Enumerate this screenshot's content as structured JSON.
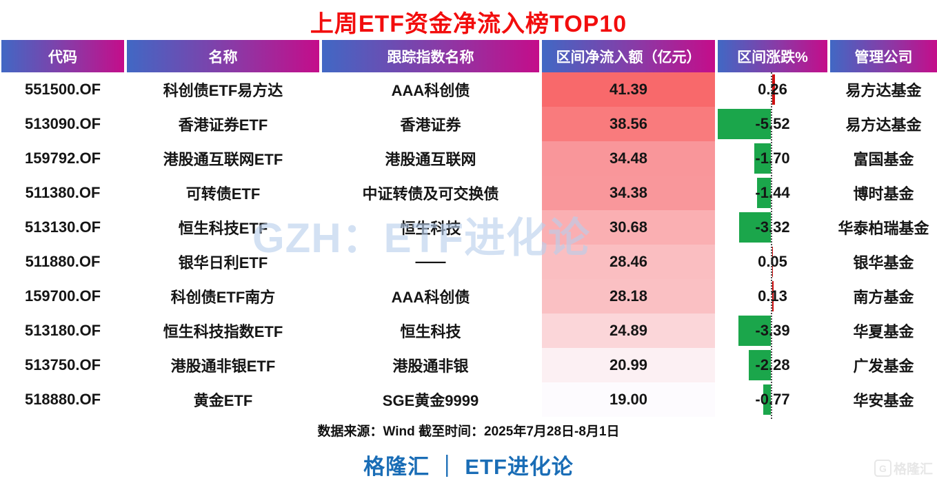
{
  "title": "上周ETF资金净流入榜TOP10",
  "watermark": {
    "text": "GZH：ETF进化论"
  },
  "table": {
    "columns": [
      {
        "label": "代码"
      },
      {
        "label": "名称"
      },
      {
        "label": "跟踪指数名称"
      },
      {
        "label": "区间净流入额（亿元）"
      },
      {
        "label": "区间涨跌%"
      },
      {
        "label": "管理公司"
      }
    ],
    "rows": [
      {
        "code": "551500.OF",
        "name": "科创债ETF易方达",
        "index": "AAA科创债",
        "inflow": "41.39",
        "change": "0.26",
        "change_value": 0.26,
        "company": "易方达基金",
        "inflow_color": "#f8696b"
      },
      {
        "code": "513090.OF",
        "name": "香港证券ETF",
        "index": "香港证券",
        "inflow": "38.56",
        "change": "-5.52",
        "change_value": -5.52,
        "company": "易方达基金",
        "inflow_color": "#f97b7d"
      },
      {
        "code": "159792.OF",
        "name": "港股通互联网ETF",
        "index": "港股通互联网",
        "inflow": "34.48",
        "change": "-1.70",
        "change_value": -1.7,
        "company": "富国基金",
        "inflow_color": "#f9969a"
      },
      {
        "code": "511380.OF",
        "name": "可转债ETF",
        "index": "中证转债及可交换债",
        "inflow": "34.38",
        "change": "-1.44",
        "change_value": -1.44,
        "company": "博时基金",
        "inflow_color": "#f9979b"
      },
      {
        "code": "513130.OF",
        "name": "恒生科技ETF",
        "index": "恒生科技",
        "inflow": "30.68",
        "change": "-3.32",
        "change_value": -3.32,
        "company": "华泰柏瑞基金",
        "inflow_color": "#faafb2"
      },
      {
        "code": "511880.OF",
        "name": "银华日利ETF",
        "index": "——",
        "inflow": "28.46",
        "change": "0.05",
        "change_value": 0.05,
        "company": "银华基金",
        "inflow_color": "#fabec1"
      },
      {
        "code": "159700.OF",
        "name": "科创债ETF南方",
        "index": "AAA科创债",
        "inflow": "28.18",
        "change": "0.13",
        "change_value": 0.13,
        "company": "南方基金",
        "inflow_color": "#fac0c3"
      },
      {
        "code": "513180.OF",
        "name": "恒生科技指数ETF",
        "index": "恒生科技",
        "inflow": "24.89",
        "change": "-3.39",
        "change_value": -3.39,
        "company": "华夏基金",
        "inflow_color": "#fbd6d9"
      },
      {
        "code": "513750.OF",
        "name": "港股通非银ETF",
        "index": "港股通非银",
        "inflow": "20.99",
        "change": "-2.28",
        "change_value": -2.28,
        "company": "广发基金",
        "inflow_color": "#fcf0f3"
      },
      {
        "code": "518880.OF",
        "name": "黄金ETF",
        "index": "SGE黄金9999",
        "inflow": "19.00",
        "change": "-0.77",
        "change_value": -0.77,
        "company": "华安基金",
        "inflow_color": "#fdfbfe"
      }
    ]
  },
  "footer": {
    "source": "数据来源：Wind 截至时间：2025年7月28日-8月1日",
    "brand": "格隆汇 ｜ ETF进化论",
    "corner_logo_letter": "G",
    "corner_logo_text": "格隆汇"
  },
  "colors": {
    "title_red": "#f20d0d",
    "header_gradient_left": "#4168c4",
    "header_gradient_right": "#c40d8a",
    "inflow_scale_max": "#f8696b",
    "inflow_scale_min": "#fcfcff",
    "negative_bar_green": "#1ba64b",
    "positive_bar_red": "#cf1212",
    "brand_blue": "#1a6db6",
    "watermark_blue": "#b9cfec"
  },
  "chart_data": {
    "type": "table",
    "title": "上周ETF资金净流入榜TOP10",
    "columns": [
      "代码",
      "名称",
      "跟踪指数名称",
      "区间净流入额（亿元）",
      "区间涨跌%",
      "管理公司"
    ],
    "rows": [
      [
        "551500.OF",
        "科创债ETF易方达",
        "AAA科创债",
        41.39,
        0.26,
        "易方达基金"
      ],
      [
        "513090.OF",
        "香港证券ETF",
        "香港证券",
        38.56,
        -5.52,
        "易方达基金"
      ],
      [
        "159792.OF",
        "港股通互联网ETF",
        "港股通互联网",
        34.48,
        -1.7,
        "富国基金"
      ],
      [
        "511380.OF",
        "可转债ETF",
        "中证转债及可交换债",
        34.38,
        -1.44,
        "博时基金"
      ],
      [
        "513130.OF",
        "恒生科技ETF",
        "恒生科技",
        30.68,
        -3.32,
        "华泰柏瑞基金"
      ],
      [
        "511880.OF",
        "银华日利ETF",
        "——",
        28.46,
        0.05,
        "银华基金"
      ],
      [
        "159700.OF",
        "科创债ETF南方",
        "AAA科创债",
        28.18,
        0.13,
        "南方基金"
      ],
      [
        "513180.OF",
        "恒生科技指数ETF",
        "恒生科技",
        24.89,
        -3.39,
        "华夏基金"
      ],
      [
        "513750.OF",
        "港股通非银ETF",
        "港股通非银",
        20.99,
        -2.28,
        "广发基金"
      ],
      [
        "518880.OF",
        "黄金ETF",
        "SGE黄金9999",
        19.0,
        -0.77,
        "华安基金"
      ]
    ],
    "style_notes": "区间净流入额 cells use red-to-white color scale by value (max 41.39 = #f8696b, min 19.00 = white); 区间涨跌% uses data bars around a dotted zero axis: green bars left for negative, dark-red bars right for positive",
    "legend_position": "none",
    "grid": false
  }
}
